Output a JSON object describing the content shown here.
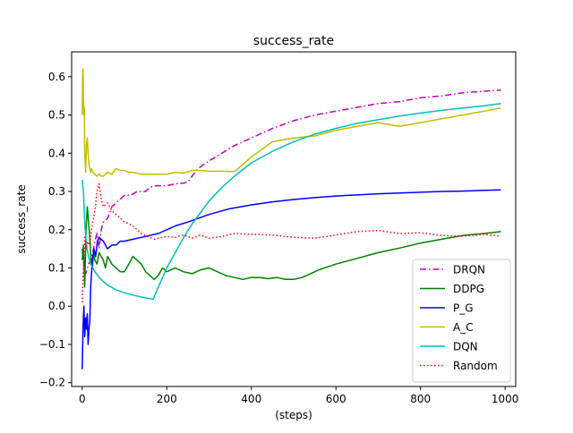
{
  "chart_data": {
    "type": "line",
    "title": "success_rate",
    "xlabel": "(steps)",
    "ylabel": "success_rate",
    "xlim": [
      -25,
      1025
    ],
    "ylim": [
      -0.21,
      0.665
    ],
    "grid": false,
    "legend_position": "lower right",
    "x_ticks": [
      0,
      200,
      400,
      600,
      800,
      1000
    ],
    "y_ticks": [
      -0.2,
      -0.1,
      0.0,
      0.1,
      0.2,
      0.3,
      0.4,
      0.5,
      0.6
    ],
    "x_tick_labels": [
      "0",
      "200",
      "400",
      "600",
      "800",
      "1000"
    ],
    "y_tick_labels": [
      "−0.2",
      "−0.1",
      "0.0",
      "0.1",
      "0.2",
      "0.3",
      "0.4",
      "0.5",
      "0.6"
    ],
    "series": [
      {
        "name": "DRQN",
        "color": "#bf00bf",
        "dash": "dashdot",
        "x": [
          0,
          3,
          6,
          10,
          15,
          20,
          25,
          30,
          35,
          40,
          45,
          50,
          60,
          70,
          80,
          90,
          100,
          115,
          130,
          150,
          160,
          170,
          180,
          200,
          220,
          240,
          250,
          260,
          270,
          280,
          300,
          330,
          360,
          400,
          450,
          500,
          550,
          600,
          650,
          700,
          750,
          800,
          850,
          900,
          950,
          990
        ],
        "y": [
          0.15,
          0.12,
          0.08,
          0.09,
          0.11,
          0.12,
          0.14,
          0.17,
          0.19,
          0.15,
          0.2,
          0.22,
          0.23,
          0.26,
          0.27,
          0.28,
          0.29,
          0.29,
          0.3,
          0.3,
          0.31,
          0.315,
          0.315,
          0.315,
          0.32,
          0.322,
          0.325,
          0.34,
          0.355,
          0.365,
          0.38,
          0.4,
          0.42,
          0.44,
          0.465,
          0.485,
          0.5,
          0.51,
          0.52,
          0.53,
          0.535,
          0.545,
          0.55,
          0.558,
          0.562,
          0.565
        ]
      },
      {
        "name": "DDPG",
        "color": "#008000",
        "dash": "solid",
        "x": [
          0,
          3,
          6,
          9,
          12,
          15,
          18,
          21,
          24,
          27,
          30,
          35,
          40,
          45,
          50,
          55,
          60,
          70,
          80,
          90,
          100,
          110,
          120,
          130,
          140,
          150,
          160,
          170,
          180,
          190,
          200,
          220,
          240,
          260,
          280,
          300,
          320,
          340,
          360,
          380,
          400,
          420,
          440,
          460,
          480,
          500,
          520,
          540,
          560,
          600,
          650,
          700,
          750,
          800,
          850,
          900,
          950,
          990
        ],
        "y": [
          0.12,
          0.16,
          0.05,
          0.2,
          0.26,
          0.22,
          0.18,
          0.12,
          0.1,
          0.14,
          0.12,
          0.11,
          0.14,
          0.13,
          0.12,
          0.1,
          0.13,
          0.11,
          0.1,
          0.09,
          0.09,
          0.11,
          0.13,
          0.12,
          0.11,
          0.09,
          0.08,
          0.07,
          0.08,
          0.1,
          0.09,
          0.1,
          0.09,
          0.085,
          0.095,
          0.1,
          0.09,
          0.08,
          0.075,
          0.07,
          0.075,
          0.075,
          0.072,
          0.075,
          0.07,
          0.07,
          0.075,
          0.085,
          0.095,
          0.11,
          0.125,
          0.14,
          0.152,
          0.165,
          0.175,
          0.185,
          0.19,
          0.195
        ]
      },
      {
        "name": "P_G",
        "color": "#0000ff",
        "dash": "solid",
        "x": [
          0,
          2,
          4,
          6,
          8,
          10,
          12,
          14,
          16,
          18,
          20,
          24,
          28,
          32,
          36,
          40,
          50,
          60,
          70,
          80,
          90,
          100,
          120,
          140,
          160,
          180,
          200,
          220,
          250,
          300,
          350,
          400,
          450,
          500,
          550,
          600,
          650,
          700,
          750,
          800,
          850,
          900,
          950,
          990
        ],
        "y": [
          -0.165,
          -0.05,
          0.0,
          -0.08,
          -0.03,
          -0.06,
          -0.02,
          -0.1,
          -0.06,
          -0.04,
          0.05,
          0.12,
          0.15,
          0.13,
          0.17,
          0.18,
          0.17,
          0.15,
          0.16,
          0.16,
          0.17,
          0.17,
          0.175,
          0.18,
          0.185,
          0.19,
          0.2,
          0.21,
          0.22,
          0.24,
          0.255,
          0.265,
          0.273,
          0.279,
          0.284,
          0.288,
          0.291,
          0.294,
          0.296,
          0.298,
          0.3,
          0.301,
          0.303,
          0.304
        ]
      },
      {
        "name": "A_C",
        "color": "#bfbf00",
        "dash": "solid",
        "x": [
          0,
          1,
          2,
          3,
          4,
          5,
          6,
          7,
          8,
          10,
          12,
          14,
          16,
          18,
          20,
          22,
          25,
          30,
          35,
          40,
          45,
          50,
          60,
          70,
          80,
          90,
          100,
          110,
          120,
          140,
          160,
          180,
          200,
          220,
          240,
          260,
          280,
          300,
          330,
          360,
          400,
          450,
          500,
          550,
          600,
          650,
          700,
          750,
          800,
          850,
          900,
          950,
          990
        ],
        "y": [
          0.5,
          0.6,
          0.62,
          0.55,
          0.5,
          0.52,
          0.4,
          0.38,
          0.35,
          0.42,
          0.44,
          0.4,
          0.37,
          0.36,
          0.35,
          0.36,
          0.35,
          0.345,
          0.34,
          0.345,
          0.34,
          0.34,
          0.35,
          0.345,
          0.36,
          0.355,
          0.355,
          0.35,
          0.35,
          0.345,
          0.345,
          0.345,
          0.345,
          0.35,
          0.348,
          0.355,
          0.355,
          0.353,
          0.353,
          0.352,
          0.39,
          0.43,
          0.44,
          0.445,
          0.46,
          0.47,
          0.48,
          0.47,
          0.48,
          0.49,
          0.5,
          0.51,
          0.518
        ]
      },
      {
        "name": "DQN",
        "color": "#00bfbf",
        "dash": "solid",
        "x": [
          0,
          3,
          6,
          10,
          15,
          20,
          30,
          40,
          50,
          60,
          80,
          100,
          120,
          140,
          160,
          168,
          180,
          200,
          220,
          240,
          260,
          280,
          300,
          330,
          360,
          400,
          450,
          500,
          550,
          600,
          650,
          700,
          750,
          800,
          850,
          900,
          950,
          990
        ],
        "y": [
          0.33,
          0.3,
          0.22,
          0.16,
          0.13,
          0.11,
          0.09,
          0.075,
          0.065,
          0.055,
          0.043,
          0.035,
          0.029,
          0.024,
          0.02,
          0.018,
          0.05,
          0.1,
          0.14,
          0.18,
          0.215,
          0.245,
          0.275,
          0.31,
          0.34,
          0.375,
          0.405,
          0.43,
          0.45,
          0.465,
          0.478,
          0.488,
          0.497,
          0.505,
          0.512,
          0.518,
          0.524,
          0.53
        ]
      },
      {
        "name": "Random",
        "color": "#ff0000",
        "dash": "dotted",
        "x": [
          0,
          3,
          6,
          9,
          12,
          15,
          18,
          21,
          25,
          30,
          35,
          40,
          45,
          50,
          60,
          70,
          80,
          90,
          100,
          110,
          120,
          130,
          140,
          150,
          160,
          170,
          180,
          200,
          220,
          240,
          260,
          280,
          300,
          330,
          360,
          400,
          450,
          500,
          550,
          600,
          650,
          700,
          750,
          800,
          850,
          900,
          950,
          990
        ],
        "y": [
          0.01,
          0.1,
          0.18,
          0.15,
          0.17,
          0.16,
          0.17,
          0.19,
          0.22,
          0.25,
          0.3,
          0.32,
          0.28,
          0.26,
          0.27,
          0.25,
          0.24,
          0.23,
          0.22,
          0.215,
          0.21,
          0.2,
          0.19,
          0.185,
          0.18,
          0.175,
          0.178,
          0.182,
          0.18,
          0.186,
          0.178,
          0.186,
          0.178,
          0.182,
          0.19,
          0.188,
          0.186,
          0.18,
          0.178,
          0.186,
          0.195,
          0.198,
          0.19,
          0.192,
          0.185,
          0.183,
          0.188,
          0.183
        ]
      }
    ]
  }
}
